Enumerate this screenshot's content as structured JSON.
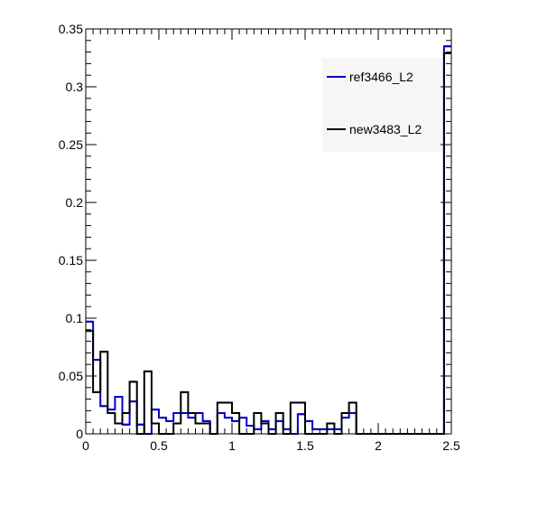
{
  "chart_data": {
    "type": "step",
    "x_range": [
      0,
      2.5
    ],
    "ylim": [
      0,
      0.35
    ],
    "bin_width": 0.05,
    "x_major_ticks": [
      0,
      0.5,
      1,
      1.5,
      2,
      2.5
    ],
    "x_tick_labels": [
      "0",
      "0.5",
      "1",
      "1.5",
      "2",
      "2.5"
    ],
    "y_major_ticks": [
      0,
      0.05,
      0.1,
      0.15,
      0.2,
      0.25,
      0.3,
      0.35
    ],
    "y_tick_labels": [
      "0",
      "0.05",
      "0.1",
      "0.15",
      "0.2",
      "0.25",
      "0.3",
      "0.35"
    ],
    "legend_position": "top-right",
    "grid": false,
    "series": [
      {
        "name": "ref3466_L2",
        "color": "#0000cc",
        "values": [
          0.097,
          0.064,
          0.024,
          0.021,
          0.032,
          0.008,
          0.028,
          0.008,
          0.0,
          0.021,
          0.014,
          0.011,
          0.018,
          0.018,
          0.014,
          0.018,
          0.011,
          0.0,
          0.018,
          0.014,
          0.011,
          0.014,
          0.007,
          0.004,
          0.011,
          0.004,
          0.011,
          0.004,
          0.0,
          0.017,
          0.011,
          0.004,
          0.004,
          0.004,
          0.004,
          0.014,
          0.018,
          0.0,
          0.0,
          0.0,
          0.0,
          0.0,
          0.0,
          0.0,
          0.0,
          0.0,
          0.0,
          0.0,
          0.0,
          0.335
        ]
      },
      {
        "name": "new3483_L2",
        "color": "#000000",
        "values": [
          0.089,
          0.036,
          0.071,
          0.018,
          0.009,
          0.018,
          0.045,
          0.0,
          0.054,
          0.009,
          0.0,
          0.0,
          0.009,
          0.036,
          0.018,
          0.009,
          0.009,
          0.0,
          0.027,
          0.027,
          0.018,
          0.0,
          0.0,
          0.018,
          0.009,
          0.0,
          0.018,
          0.0,
          0.027,
          0.027,
          0.0,
          0.0,
          0.0,
          0.009,
          0.0,
          0.018,
          0.027,
          0.0,
          0.0,
          0.0,
          0.0,
          0.0,
          0.0,
          0.0,
          0.0,
          0.0,
          0.0,
          0.0,
          0.0,
          0.329
        ]
      }
    ]
  }
}
